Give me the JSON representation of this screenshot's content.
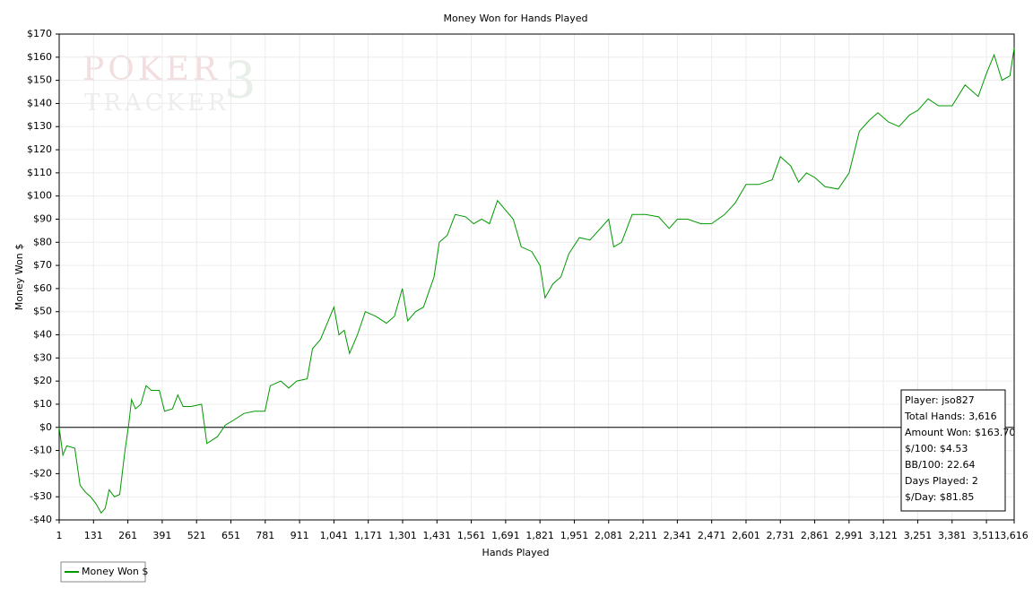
{
  "chart_data": {
    "type": "line",
    "title": "Money Won for Hands Played",
    "x_label": "Hands Played",
    "y_label": "Money Won $",
    "watermark": [
      "POKER",
      "TRACKER",
      "3"
    ],
    "info_box": [
      "Player: jso827",
      "Total Hands: 3,616",
      "Amount Won: $163.70",
      "$/100: $4.53",
      "BB/100: 22.64",
      "Days Played: 2",
      "$/Day: $81.85"
    ],
    "xlim": [
      1,
      3616
    ],
    "ylim": [
      -40,
      170
    ],
    "grid": true,
    "zero_line": true,
    "xticks": [
      1,
      131,
      261,
      391,
      521,
      651,
      781,
      911,
      {
        "value": 1041,
        "label": "1,041"
      },
      {
        "value": 1171,
        "label": "1,171"
      },
      {
        "value": 1301,
        "label": "1,301"
      },
      {
        "value": 1431,
        "label": "1,431"
      },
      {
        "value": 1561,
        "label": "1,561"
      },
      {
        "value": 1691,
        "label": "1,691"
      },
      {
        "value": 1821,
        "label": "1,821"
      },
      {
        "value": 1951,
        "label": "1,951"
      },
      {
        "value": 2081,
        "label": "2,081"
      },
      {
        "value": 2211,
        "label": "2,211"
      },
      {
        "value": 2341,
        "label": "2,341"
      },
      {
        "value": 2471,
        "label": "2,471"
      },
      {
        "value": 2601,
        "label": "2,601"
      },
      {
        "value": 2731,
        "label": "2,731"
      },
      {
        "value": 2861,
        "label": "2,861"
      },
      {
        "value": 2991,
        "label": "2,991"
      },
      {
        "value": 3121,
        "label": "3,121"
      },
      {
        "value": 3251,
        "label": "3,251"
      },
      {
        "value": 3381,
        "label": "3,381"
      },
      {
        "value": 3511,
        "label": "3,511"
      },
      {
        "value": 3616,
        "label": "3,616"
      }
    ],
    "yticks": [
      {
        "value": -40,
        "label": "-$40"
      },
      {
        "value": -30,
        "label": "-$30"
      },
      {
        "value": -20,
        "label": "-$20"
      },
      {
        "value": -10,
        "label": "-$10"
      },
      {
        "value": 0,
        "label": "$0"
      },
      {
        "value": 10,
        "label": "$10"
      },
      {
        "value": 20,
        "label": "$20"
      },
      {
        "value": 30,
        "label": "$30"
      },
      {
        "value": 40,
        "label": "$40"
      },
      {
        "value": 50,
        "label": "$50"
      },
      {
        "value": 60,
        "label": "$60"
      },
      {
        "value": 70,
        "label": "$70"
      },
      {
        "value": 80,
        "label": "$80"
      },
      {
        "value": 90,
        "label": "$90"
      },
      {
        "value": 100,
        "label": "$100"
      },
      {
        "value": 110,
        "label": "$110"
      },
      {
        "value": 120,
        "label": "$120"
      },
      {
        "value": 130,
        "label": "$130"
      },
      {
        "value": 140,
        "label": "$140"
      },
      {
        "value": 150,
        "label": "$150"
      },
      {
        "value": 160,
        "label": "$160"
      },
      {
        "value": 170,
        "label": "$170"
      }
    ],
    "x": [
      1,
      15,
      30,
      60,
      80,
      100,
      120,
      140,
      160,
      175,
      190,
      210,
      230,
      250,
      265,
      275,
      290,
      310,
      330,
      350,
      380,
      400,
      430,
      450,
      470,
      500,
      540,
      560,
      600,
      630,
      660,
      700,
      740,
      780,
      800,
      840,
      870,
      900,
      940,
      960,
      990,
      1041,
      1060,
      1080,
      1100,
      1130,
      1160,
      1200,
      1240,
      1270,
      1300,
      1320,
      1350,
      1380,
      1420,
      1440,
      1470,
      1500,
      1540,
      1570,
      1600,
      1630,
      1660,
      1690,
      1720,
      1750,
      1790,
      1821,
      1840,
      1870,
      1900,
      1930,
      1970,
      2010,
      2050,
      2081,
      2100,
      2130,
      2170,
      2220,
      2270,
      2310,
      2341,
      2380,
      2430,
      2470,
      2520,
      2560,
      2601,
      2650,
      2700,
      2731,
      2770,
      2800,
      2830,
      2861,
      2900,
      2950,
      2991,
      3030,
      3070,
      3100,
      3140,
      3180,
      3220,
      3251,
      3290,
      3330,
      3381,
      3430,
      3480,
      3511,
      3540,
      3570,
      3600,
      3616
    ],
    "series": [
      {
        "name": "Money Won $",
        "color": "#009900",
        "values": [
          0,
          -12,
          -8,
          -9,
          -25,
          -28,
          -30,
          -33,
          -37,
          -35,
          -27,
          -30,
          -29,
          -10,
          2,
          12,
          8,
          10,
          18,
          16,
          16,
          7,
          8,
          14,
          9,
          9,
          10,
          -7,
          -4,
          1,
          3,
          6,
          7,
          7,
          18,
          20,
          17,
          20,
          21,
          34,
          38,
          52,
          40,
          42,
          32,
          40,
          50,
          48,
          45,
          48,
          60,
          46,
          50,
          52,
          65,
          80,
          83,
          92,
          91,
          88,
          90,
          88,
          98,
          94,
          90,
          78,
          76,
          70,
          56,
          62,
          65,
          75,
          82,
          81,
          86,
          90,
          78,
          80,
          92,
          92,
          91,
          86,
          90,
          90,
          88,
          88,
          92,
          97,
          105,
          105,
          107,
          117,
          113,
          106,
          110,
          108,
          104,
          103,
          110,
          128,
          133,
          136,
          132,
          130,
          135,
          137,
          142,
          139,
          139,
          148,
          143,
          153,
          161,
          150,
          152,
          164
        ]
      }
    ]
  }
}
